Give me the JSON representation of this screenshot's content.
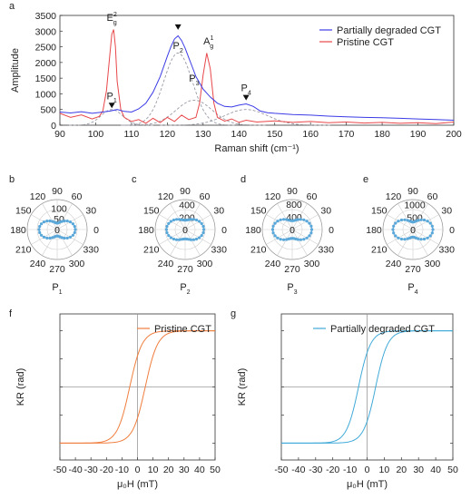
{
  "chart_data": [
    {
      "panel": "a",
      "type": "line",
      "xlabel": "Raman shift (cm⁻¹)",
      "ylabel": "Amplitude",
      "xlim": [
        90,
        200
      ],
      "ylim": [
        0,
        3500
      ],
      "xticks": [
        90,
        100,
        110,
        120,
        130,
        140,
        150,
        160,
        170,
        180,
        190,
        200
      ],
      "yticks": [
        0,
        500,
        1000,
        1500,
        2000,
        2500,
        3000,
        3500
      ],
      "legend": "top-right",
      "series": [
        {
          "name": "Partially degraded CGT",
          "color": "#3b3be6",
          "x": [
            90,
            93,
            96,
            99,
            102,
            104,
            106,
            108,
            110,
            112,
            114,
            116,
            118,
            120,
            121,
            122,
            123,
            124,
            125,
            126,
            127,
            128,
            130,
            132,
            134,
            136,
            138,
            140,
            142,
            144,
            146,
            148,
            150,
            155,
            160,
            165,
            170,
            175,
            180,
            185,
            190,
            195,
            200
          ],
          "y": [
            420,
            390,
            430,
            380,
            420,
            450,
            500,
            440,
            420,
            520,
            700,
            1050,
            1550,
            2200,
            2500,
            2750,
            2850,
            2700,
            2450,
            2150,
            1850,
            1550,
            1150,
            900,
            700,
            600,
            580,
            640,
            680,
            600,
            450,
            400,
            380,
            340,
            320,
            290,
            270,
            250,
            240,
            220,
            200,
            180,
            160
          ]
        },
        {
          "name": "Pristine CGT",
          "color": "#e8474a",
          "x": [
            90,
            93,
            96,
            99,
            101,
            102,
            103,
            104,
            104.5,
            105,
            105.5,
            106,
            107,
            108,
            110,
            112,
            114,
            116,
            118,
            120,
            122,
            124,
            126,
            128,
            129,
            130,
            131,
            132,
            133,
            134,
            136,
            138,
            140,
            142,
            145,
            150,
            155,
            160,
            165,
            170,
            175,
            180,
            185,
            190,
            195,
            200
          ],
          "y": [
            380,
            250,
            330,
            200,
            280,
            450,
            1100,
            2300,
            2900,
            3050,
            2500,
            1400,
            500,
            250,
            120,
            180,
            60,
            220,
            80,
            250,
            120,
            320,
            180,
            250,
            700,
            1600,
            2300,
            1800,
            700,
            250,
            130,
            200,
            90,
            160,
            100,
            140,
            90,
            120,
            80,
            100,
            70,
            90,
            60,
            80,
            50,
            100
          ]
        }
      ],
      "fits": [
        {
          "label": "P1",
          "center": 104.5,
          "height": 500,
          "width": 3
        },
        {
          "label": "P2",
          "center": 123,
          "height": 2300,
          "width": 4
        },
        {
          "label": "P3",
          "center": 127.5,
          "height": 800,
          "width": 5
        },
        {
          "label": "P4",
          "center": 142,
          "height": 500,
          "width": 6
        }
      ],
      "annotations": [
        {
          "text": "E",
          "sub": "g",
          "sup": "2",
          "x": 104.5,
          "y": 3100
        },
        {
          "text": "A",
          "sub": "g",
          "sup": "1",
          "x": 130.5,
          "y": 2350
        },
        {
          "text": "P",
          "sub": "1",
          "x": 104.5,
          "y": 600
        },
        {
          "text": "P",
          "sub": "2",
          "x": 123,
          "y": 2200
        },
        {
          "text": "P",
          "sub": "3",
          "x": 127.5,
          "y": 1150
        },
        {
          "text": "P",
          "sub": "4",
          "x": 142,
          "y": 850
        }
      ],
      "markers": [
        {
          "x": 104.5,
          "y": 600
        },
        {
          "x": 123,
          "y": 3100
        },
        {
          "x": 142,
          "y": 850
        }
      ]
    },
    {
      "panel": "b",
      "type": "polar",
      "label": "P",
      "label_sub": "1",
      "rticks": [
        50,
        100
      ],
      "rmax": 140,
      "color": "#5aa7d9",
      "major": 85,
      "minor": 30
    },
    {
      "panel": "c",
      "type": "polar",
      "label": "P",
      "label_sub": "2",
      "rticks": [
        200,
        400
      ],
      "rmax": 480,
      "color": "#5aa7d9",
      "major": 300,
      "minor": 150
    },
    {
      "panel": "d",
      "type": "polar",
      "label": "P",
      "label_sub": "3",
      "rticks": [
        400,
        800
      ],
      "rmax": 950,
      "color": "#5aa7d9",
      "major": 620,
      "minor": 280
    },
    {
      "panel": "e",
      "type": "polar",
      "label": "P",
      "label_sub": "4",
      "rticks": [
        500,
        1000
      ],
      "rmax": 1200,
      "color": "#5aa7d9",
      "major": 800,
      "minor": 300
    },
    {
      "panel": "f",
      "type": "line",
      "series_name": "Pristine CGT",
      "color": "#f07d3c",
      "xlabel": "μ₀H (mT)",
      "ylabel": "KR (rad)",
      "xlim": [
        -50,
        50
      ],
      "ylim": [
        -1.3,
        1.3
      ],
      "xticks": [
        -50,
        -40,
        -30,
        -20,
        -10,
        0,
        10,
        20,
        30,
        40,
        50
      ],
      "loop_offset": 5,
      "loop_scale": 8,
      "saturation": 1.0
    },
    {
      "panel": "g",
      "type": "line",
      "series_name": "Partially degraded CGT",
      "color": "#3fa9d8",
      "xlabel": "μ₀H (mT)",
      "ylabel": "KR (rad)",
      "xlim": [
        -50,
        50
      ],
      "ylim": [
        -1.3,
        1.3
      ],
      "xticks": [
        -50,
        -40,
        -30,
        -20,
        -10,
        0,
        10,
        20,
        30,
        40,
        50
      ],
      "loop_offset": 5,
      "loop_scale": 7,
      "saturation": 1.0
    }
  ],
  "panel_letters": [
    "a",
    "b",
    "c",
    "d",
    "e",
    "f",
    "g"
  ],
  "polar_angle_labels": [
    "0",
    "30",
    "60",
    "90",
    "120",
    "150",
    "180",
    "210",
    "240",
    "270",
    "300",
    "330"
  ],
  "polar_center_label": "0"
}
